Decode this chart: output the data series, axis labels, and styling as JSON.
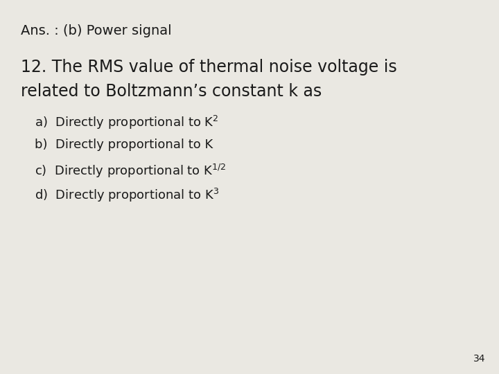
{
  "background_color": "#eae8e2",
  "text_color": "#1a1a1a",
  "line1": "Ans. : (b) Power signal",
  "line1_fontsize": 14,
  "question_line1": "12. The RMS value of thermal noise voltage is",
  "question_line2": "related to Boltzmann’s constant k as",
  "question_fontsize": 17,
  "options": [
    {
      "label": "a)  ",
      "text": "Directly proportional to K",
      "superscript": "2"
    },
    {
      "label": "b)  ",
      "text": "Directly proportional to K",
      "superscript": ""
    },
    {
      "label": "c)  ",
      "text": "Directly proportional to K",
      "superscript": "1/2"
    },
    {
      "label": "d)  ",
      "text": "Directly proportional to K",
      "superscript": "3"
    }
  ],
  "option_fontsize": 13,
  "page_number": "34",
  "page_fontsize": 10
}
